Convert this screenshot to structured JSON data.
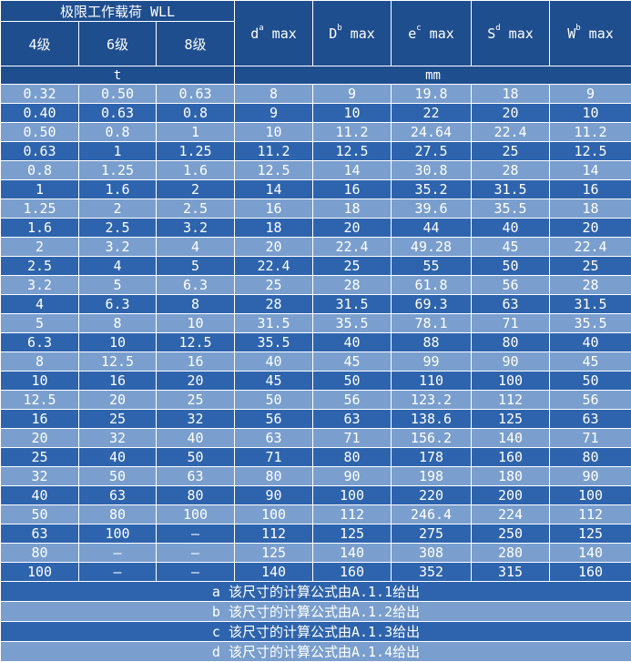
{
  "header": {
    "wll": "极限工作载荷 WLL",
    "grades": [
      "4级",
      "6级",
      "8级"
    ],
    "cols": [
      {
        "base": "d",
        "sup": "a",
        "suffix": " max"
      },
      {
        "base": "D",
        "sup": "b",
        "suffix": " max"
      },
      {
        "base": "e",
        "sup": "c",
        "suffix": " max"
      },
      {
        "base": "S",
        "sup": "d",
        "suffix": " max"
      },
      {
        "base": "W",
        "sup": "b",
        "suffix": " max"
      }
    ]
  },
  "units": {
    "left": "t",
    "right": "mm"
  },
  "rows": [
    [
      "0.32",
      "0.50",
      "0.63",
      "8",
      "9",
      "19.8",
      "18",
      "9"
    ],
    [
      "0.40",
      "0.63",
      "0.8",
      "9",
      "10",
      "22",
      "20",
      "10"
    ],
    [
      "0.50",
      "0.8",
      "1",
      "10",
      "11.2",
      "24.64",
      "22.4",
      "11.2"
    ],
    [
      "0.63",
      "1",
      "1.25",
      "11.2",
      "12.5",
      "27.5",
      "25",
      "12.5"
    ],
    [
      "0.8",
      "1.25",
      "1.6",
      "12.5",
      "14",
      "30.8",
      "28",
      "14"
    ],
    [
      "1",
      "1.6",
      "2",
      "14",
      "16",
      "35.2",
      "31.5",
      "16"
    ],
    [
      "1.25",
      "2",
      "2.5",
      "16",
      "18",
      "39.6",
      "35.5",
      "18"
    ],
    [
      "1.6",
      "2.5",
      "3.2",
      "18",
      "20",
      "44",
      "40",
      "20"
    ],
    [
      "2",
      "3.2",
      "4",
      "20",
      "22.4",
      "49.28",
      "45",
      "22.4"
    ],
    [
      "2.5",
      "4",
      "5",
      "22.4",
      "25",
      "55",
      "50",
      "25"
    ],
    [
      "3.2",
      "5",
      "6.3",
      "25",
      "28",
      "61.8",
      "56",
      "28"
    ],
    [
      "4",
      "6.3",
      "8",
      "28",
      "31.5",
      "69.3",
      "63",
      "31.5"
    ],
    [
      "5",
      "8",
      "10",
      "31.5",
      "35.5",
      "78.1",
      "71",
      "35.5"
    ],
    [
      "6.3",
      "10",
      "12.5",
      "35.5",
      "40",
      "88",
      "80",
      "40"
    ],
    [
      "8",
      "12.5",
      "16",
      "40",
      "45",
      "99",
      "90",
      "45"
    ],
    [
      "10",
      "16",
      "20",
      "45",
      "50",
      "110",
      "100",
      "50"
    ],
    [
      "12.5",
      "20",
      "25",
      "50",
      "56",
      "123.2",
      "112",
      "56"
    ],
    [
      "16",
      "25",
      "32",
      "56",
      "63",
      "138.6",
      "125",
      "63"
    ],
    [
      "20",
      "32",
      "40",
      "63",
      "71",
      "156.2",
      "140",
      "71"
    ],
    [
      "25",
      "40",
      "50",
      "71",
      "80",
      "178",
      "160",
      "80"
    ],
    [
      "32",
      "50",
      "63",
      "80",
      "90",
      "198",
      "180",
      "90"
    ],
    [
      "40",
      "63",
      "80",
      "90",
      "100",
      "220",
      "200",
      "100"
    ],
    [
      "50",
      "80",
      "100",
      "100",
      "112",
      "246.4",
      "224",
      "112"
    ],
    [
      "63",
      "100",
      "—",
      "112",
      "125",
      "275",
      "250",
      "125"
    ],
    [
      "80",
      "—",
      "—",
      "125",
      "140",
      "308",
      "280",
      "140"
    ],
    [
      "100",
      "—",
      "—",
      "140",
      "160",
      "352",
      "315",
      "160"
    ]
  ],
  "notes": [
    "a 该尺寸的计算公式由A.1.1给出",
    "b 该尺寸的计算公式由A.1.2给出",
    "c 该尺寸的计算公式由A.1.3给出",
    "d 该尺寸的计算公式由A.1.4给出"
  ],
  "colors": {
    "header": "#1f4e8f",
    "dark_row": "#2e64ad",
    "light_row": "#7a9fce"
  }
}
